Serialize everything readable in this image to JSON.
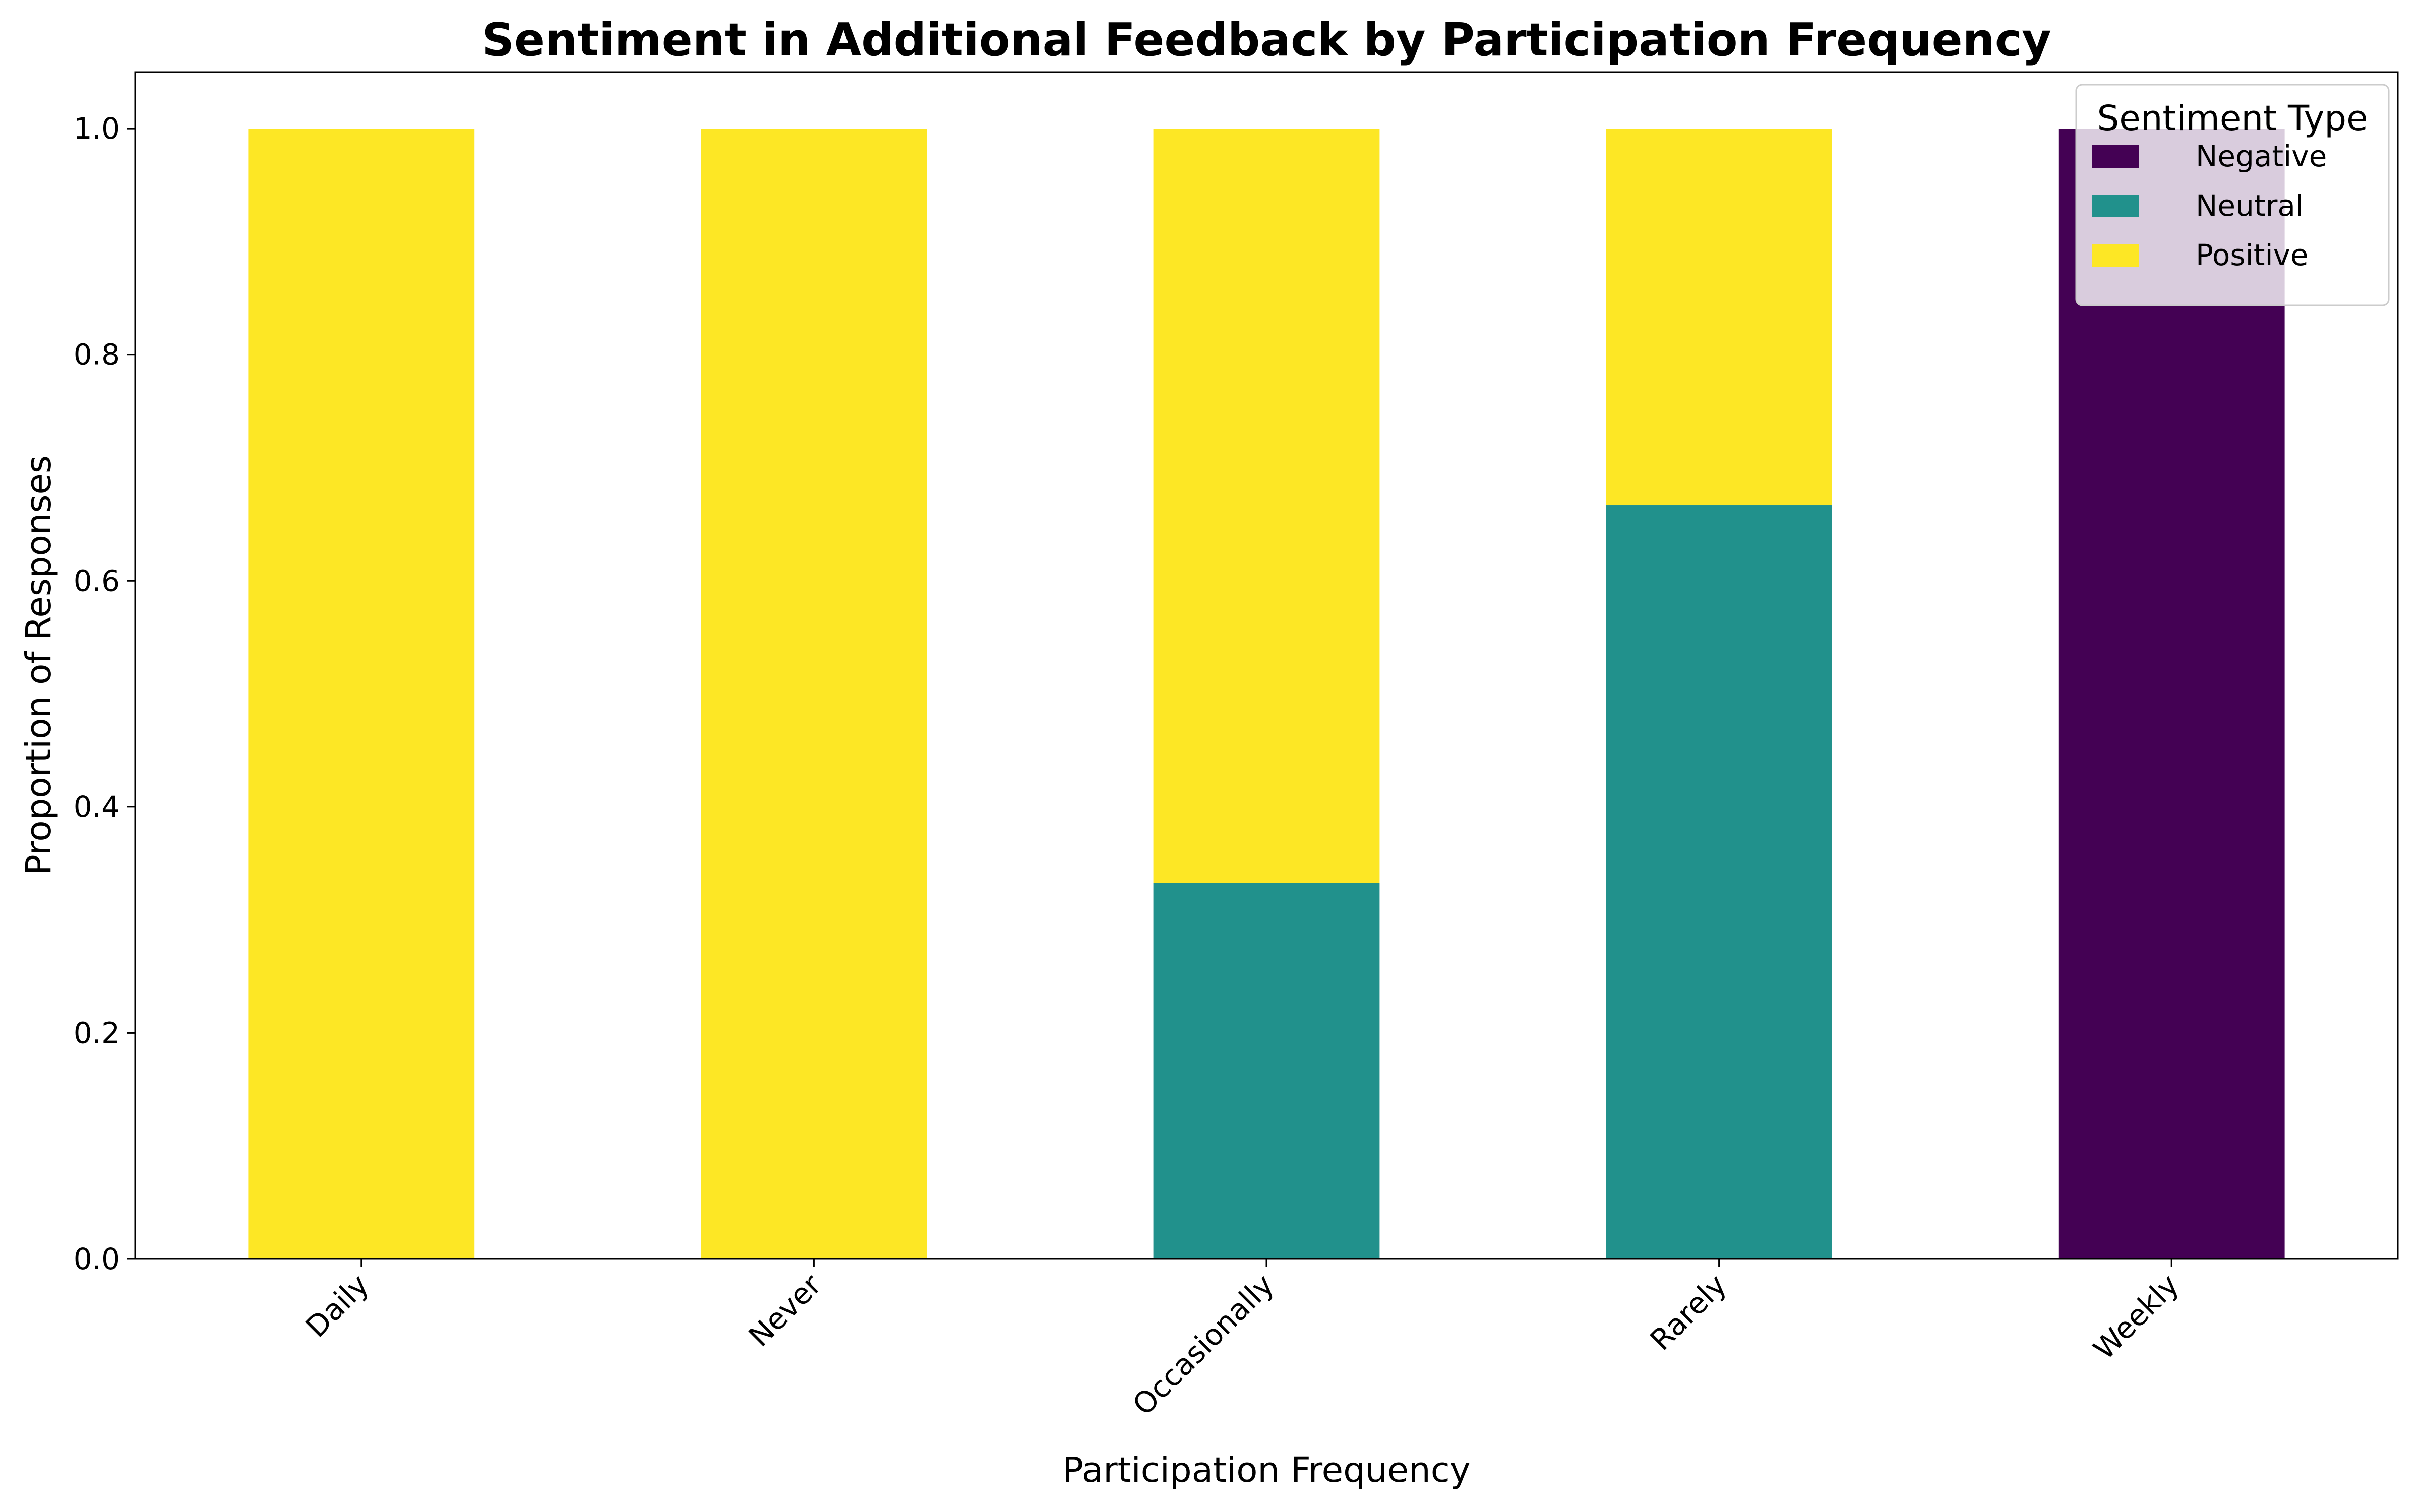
{
  "chart_data": {
    "type": "bar",
    "stacked": true,
    "title": "Sentiment in Additional Feedback by Participation Frequency",
    "xlabel": "Participation Frequency",
    "ylabel": "Proportion of Responses",
    "categories": [
      "Daily",
      "Never",
      "Occasionally",
      "Rarely",
      "Weekly"
    ],
    "series": [
      {
        "name": "Negative",
        "color": "#440154",
        "values": [
          0,
          0,
          0,
          0,
          1.0
        ]
      },
      {
        "name": "Neutral",
        "color": "#21918c",
        "values": [
          0,
          0,
          0.333,
          0.667,
          0
        ]
      },
      {
        "name": "Positive",
        "color": "#fde725",
        "values": [
          1.0,
          1.0,
          0.667,
          0.333,
          0
        ]
      }
    ],
    "ylim": [
      0,
      1.05
    ],
    "yticks": [
      0.0,
      0.2,
      0.4,
      0.6,
      0.8,
      1.0
    ],
    "ytick_labels": [
      "0.0",
      "0.2",
      "0.4",
      "0.6",
      "0.8",
      "1.0"
    ],
    "grid": false,
    "legend": {
      "title": "Sentiment Type",
      "position": "top-right"
    }
  }
}
